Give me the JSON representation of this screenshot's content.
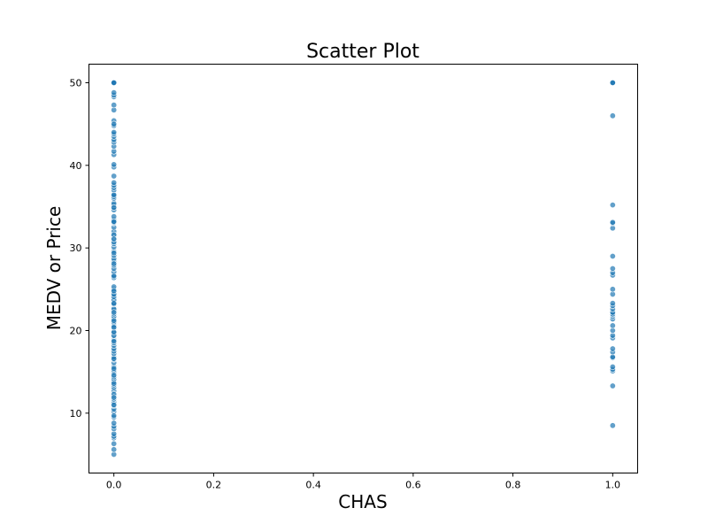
{
  "chart_data": {
    "type": "scatter",
    "title": "Scatter Plot",
    "xlabel": "CHAS",
    "ylabel": "MEDV or Price",
    "xlim": [
      -0.05,
      1.05
    ],
    "ylim": [
      2.75,
      52.25
    ],
    "xticks": [
      "0.0",
      "0.2",
      "0.4",
      "0.6",
      "0.8",
      "1.0"
    ],
    "xtick_values": [
      0.0,
      0.2,
      0.4,
      0.6,
      0.8,
      1.0
    ],
    "yticks": [
      "10",
      "20",
      "30",
      "40",
      "50"
    ],
    "ytick_values": [
      10,
      20,
      30,
      40,
      50
    ],
    "grid": false,
    "marker_color": "#1f77b4",
    "series": [
      {
        "x": [
          0,
          0,
          0,
          0,
          0,
          0,
          0,
          0,
          0,
          0,
          0,
          0,
          0,
          0,
          0,
          0,
          0,
          0,
          0,
          0,
          0,
          0,
          0,
          0,
          0,
          0,
          0,
          0,
          0,
          0,
          0,
          0,
          0,
          0,
          0,
          0,
          0,
          0,
          0,
          0,
          0,
          0,
          0,
          0,
          0,
          0,
          0,
          0,
          0,
          0,
          0,
          0,
          0,
          0,
          0,
          0,
          0,
          0,
          0,
          0,
          0,
          0,
          0,
          0,
          0,
          0,
          0,
          0,
          0,
          0,
          0,
          0,
          0,
          0,
          0,
          0,
          0,
          0,
          0,
          0,
          0,
          0,
          0,
          0,
          0,
          0,
          0,
          0,
          0,
          0,
          0,
          0,
          0,
          0,
          0,
          0,
          0,
          0,
          0,
          0,
          0,
          0,
          0,
          0,
          0,
          0,
          0,
          0,
          0,
          0,
          0,
          0,
          0,
          0,
          0,
          0,
          0,
          0,
          0,
          0,
          0,
          0,
          0,
          0,
          0,
          0,
          0,
          0,
          0,
          0,
          0,
          0,
          0,
          0,
          0,
          1,
          1,
          1,
          1,
          1,
          1,
          1,
          1,
          1,
          1,
          1,
          1,
          1,
          1,
          1,
          1,
          1,
          1,
          1,
          1,
          1,
          1,
          1,
          1,
          1,
          1,
          1,
          1,
          1,
          1,
          1,
          1,
          1,
          1,
          1
        ],
        "y": [
          5.0,
          5.6,
          6.3,
          7.0,
          7.2,
          7.5,
          8.1,
          8.4,
          8.8,
          9.5,
          10.2,
          10.5,
          10.9,
          11.3,
          11.7,
          12.1,
          12.7,
          13.1,
          13.4,
          13.8,
          14.1,
          14.4,
          14.9,
          15.2,
          15.6,
          16.1,
          16.5,
          16.8,
          17.2,
          17.5,
          17.8,
          18.2,
          18.5,
          18.9,
          19.3,
          19.6,
          19.9,
          20.3,
          20.6,
          21.0,
          21.4,
          21.7,
          22.0,
          22.4,
          22.8,
          23.1,
          23.5,
          23.9,
          24.3,
          24.7,
          25.0,
          25.3,
          26.4,
          26.7,
          27.1,
          27.5,
          27.9,
          28.4,
          28.7,
          29.1,
          29.6,
          30.1,
          30.5,
          31.0,
          31.5,
          32.0,
          32.5,
          33.0,
          33.4,
          33.8,
          34.6,
          34.9,
          35.2,
          35.4,
          36.0,
          36.2,
          36.5,
          37.0,
          37.3,
          37.6,
          38.7,
          39.8,
          41.3,
          41.7,
          42.3,
          42.8,
          43.1,
          43.5,
          43.8,
          44.0,
          44.8,
          45.4,
          46.7,
          48.3,
          48.5,
          48.8,
          50.0,
          50.0,
          50.0,
          50.0,
          13.6,
          14.6,
          15.4,
          19.4,
          19.8,
          20.4,
          22.6,
          23.2,
          23.7,
          24.1,
          24.4,
          24.8,
          26.6,
          28.1,
          29.4,
          30.7,
          31.6,
          31.1,
          33.1,
          33.2,
          34.9,
          36.4,
          37.9,
          40.1,
          45.0,
          47.3,
          21.2,
          22.2,
          23.3,
          18.7,
          16.6,
          12.3,
          11.9,
          11.0,
          9.7,
          8.5,
          13.3,
          15.1,
          15.3,
          15.6,
          16.7,
          16.8,
          17.4,
          17.8,
          19.1,
          19.4,
          20.0,
          20.6,
          21.4,
          21.7,
          21.9,
          22.0,
          22.2,
          22.6,
          23.0,
          23.3,
          24.4,
          25.0,
          26.7,
          27.0,
          27.5,
          29.0,
          32.4,
          33.0,
          33.1,
          35.2,
          46.0,
          50.0,
          50.0,
          50.0
        ]
      }
    ]
  }
}
